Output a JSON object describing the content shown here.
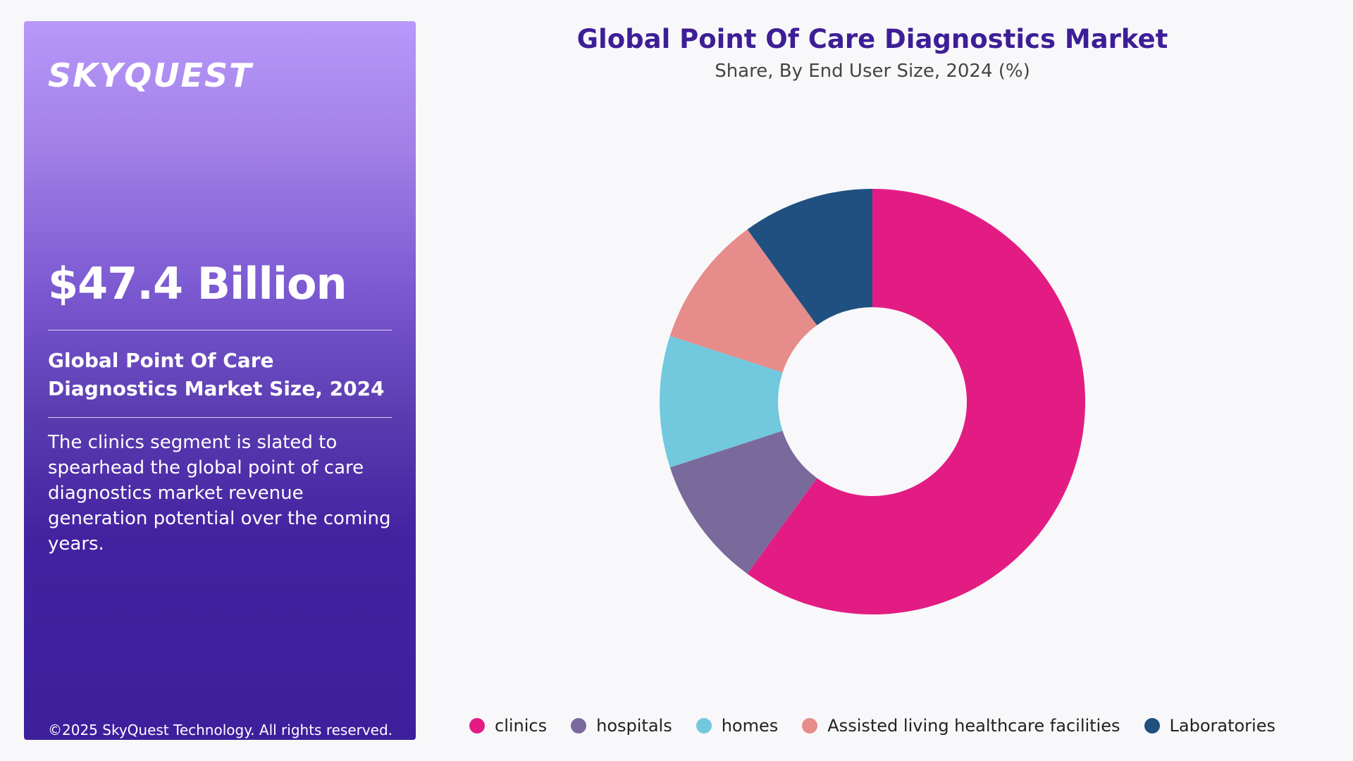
{
  "brand": {
    "logo_text": "SKYQUEST"
  },
  "panel": {
    "big_value": "$47.4 Billion",
    "metric_label": "Global Point Of Care Diagnostics Market Size, 2024",
    "description": "The clinics segment is slated to spearhead the global point of care diagnostics market revenue generation potential over the coming years.",
    "copyright": "©2025 SkyQuest Technology. All rights reserved."
  },
  "colors": {
    "panel_top": "#b898fa",
    "panel_bottom": "#3d1f9c",
    "title": "#3e1e96"
  },
  "chart_data": {
    "type": "pie",
    "donut": true,
    "title": "Global Point Of Care Diagnostics Market",
    "subtitle": "Share, By End User Size, 2024 (%)",
    "legend_position": "bottom",
    "categories": [
      "clinics",
      "hospitals",
      "homes",
      "Assisted living healthcare facilities",
      "Laboratories"
    ],
    "values": [
      60,
      10,
      10,
      10,
      10
    ],
    "colors": [
      "#e31c84",
      "#7a6a9c",
      "#72c8dc",
      "#e68c8a",
      "#1f5080"
    ]
  }
}
